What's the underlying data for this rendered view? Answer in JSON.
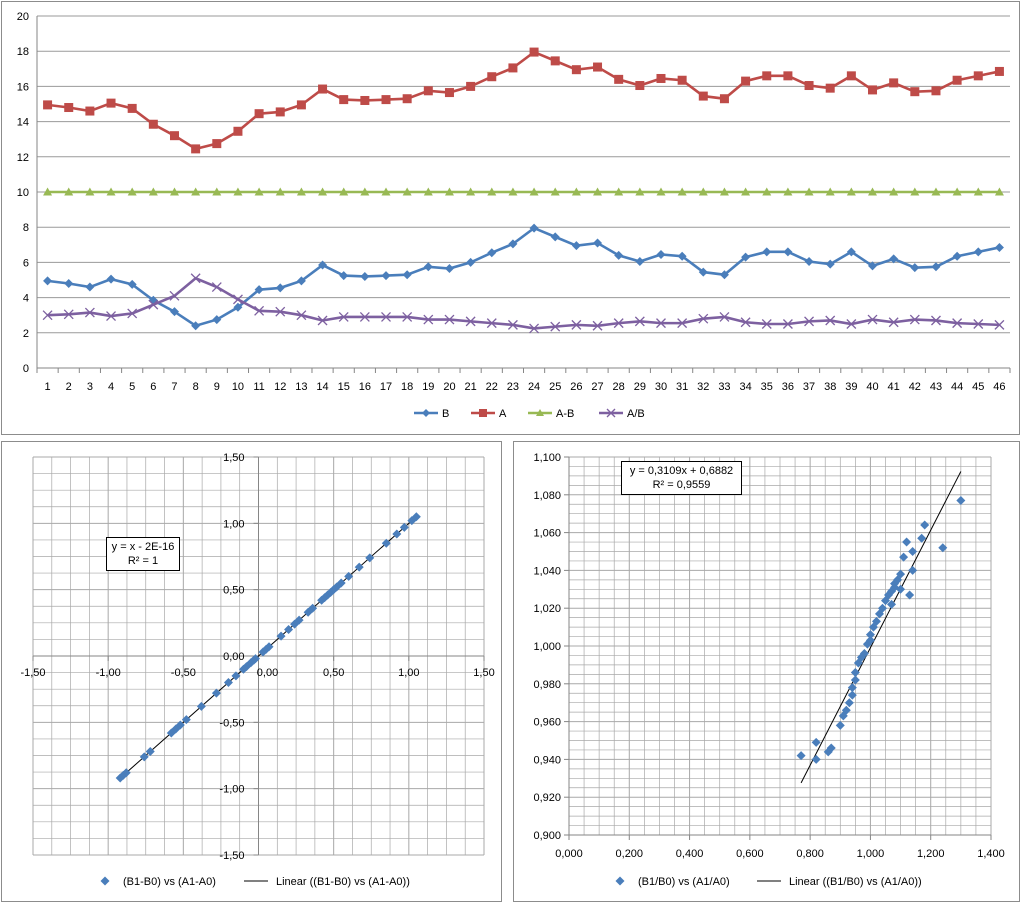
{
  "chart_data": [
    {
      "type": "line",
      "categories": [
        "1",
        "2",
        "3",
        "4",
        "5",
        "6",
        "7",
        "8",
        "9",
        "10",
        "11",
        "12",
        "13",
        "14",
        "15",
        "16",
        "17",
        "18",
        "19",
        "20",
        "21",
        "22",
        "23",
        "24",
        "25",
        "26",
        "27",
        "28",
        "29",
        "30",
        "31",
        "32",
        "33",
        "34",
        "35",
        "36",
        "37",
        "38",
        "39",
        "40",
        "41",
        "42",
        "43",
        "44",
        "45",
        "46"
      ],
      "ylim": [
        0,
        20
      ],
      "yticks": [
        "0",
        "2",
        "4",
        "6",
        "8",
        "10",
        "12",
        "14",
        "16",
        "18",
        "20"
      ],
      "grid": true,
      "legend": "bottom",
      "series": [
        {
          "name": "B",
          "color": "#4a7ebb",
          "marker": "diamond",
          "values": [
            4.95,
            4.8,
            4.6,
            5.05,
            4.75,
            3.85,
            3.2,
            2.4,
            2.75,
            3.45,
            4.45,
            4.55,
            4.95,
            5.85,
            5.25,
            5.2,
            5.25,
            5.3,
            5.75,
            5.65,
            6.0,
            6.55,
            7.05,
            7.95,
            7.45,
            6.95,
            7.1,
            6.4,
            6.05,
            6.45,
            6.35,
            5.45,
            5.3,
            6.3,
            6.6,
            6.6,
            6.05,
            5.9,
            6.6,
            5.8,
            6.2,
            5.7,
            5.75,
            6.35,
            6.6,
            6.85
          ]
        },
        {
          "name": "A",
          "color": "#be4b48",
          "marker": "square",
          "values": [
            14.95,
            14.8,
            14.6,
            15.05,
            14.75,
            13.85,
            13.2,
            12.45,
            12.75,
            13.45,
            14.45,
            14.55,
            14.95,
            15.85,
            15.25,
            15.2,
            15.25,
            15.3,
            15.75,
            15.65,
            16.0,
            16.55,
            17.05,
            17.95,
            17.45,
            16.95,
            17.1,
            16.4,
            16.05,
            16.45,
            16.35,
            15.45,
            15.3,
            16.3,
            16.6,
            16.6,
            16.05,
            15.9,
            16.6,
            15.8,
            16.2,
            15.7,
            15.75,
            16.35,
            16.6,
            16.85
          ]
        },
        {
          "name": "A-B",
          "color": "#98b954",
          "marker": "triangle",
          "values": [
            10,
            10,
            10,
            10,
            10,
            10,
            10,
            10,
            10,
            10,
            10,
            10,
            10,
            10,
            10,
            10,
            10,
            10,
            10,
            10,
            10,
            10,
            10,
            10,
            10,
            10,
            10,
            10,
            10,
            10,
            10,
            10,
            10,
            10,
            10,
            10,
            10,
            10,
            10,
            10,
            10,
            10,
            10,
            10,
            10,
            10
          ]
        },
        {
          "name": "A/B",
          "color": "#7d60a0",
          "marker": "x",
          "values": [
            3.0,
            3.05,
            3.15,
            2.95,
            3.1,
            3.6,
            4.1,
            5.1,
            4.6,
            3.9,
            3.25,
            3.2,
            3.0,
            2.7,
            2.9,
            2.9,
            2.9,
            2.9,
            2.75,
            2.75,
            2.65,
            2.55,
            2.45,
            2.25,
            2.35,
            2.45,
            2.4,
            2.55,
            2.65,
            2.55,
            2.55,
            2.8,
            2.9,
            2.6,
            2.5,
            2.5,
            2.65,
            2.7,
            2.5,
            2.75,
            2.6,
            2.75,
            2.7,
            2.55,
            2.5,
            2.45
          ]
        }
      ]
    },
    {
      "type": "scatter",
      "xlim": [
        -1.5,
        1.5
      ],
      "ylim": [
        -1.5,
        1.5
      ],
      "xticks": [
        "-1,50",
        "-1,00",
        "-0,50",
        "0,00",
        "0,50",
        "1,00",
        "1,50"
      ],
      "yticks": [
        "-1,50",
        "-1,00",
        "-0,50",
        "0,00",
        "0,50",
        "1,00",
        "1,50"
      ],
      "grid": true,
      "legend": "bottom",
      "equation": "y = x - 2E-16",
      "r2": "R² = 1",
      "trendline": {
        "slope": 1,
        "intercept": 0,
        "x_from": -0.92,
        "x_to": 1.05
      },
      "series": [
        {
          "name": "(B1-B0) vs (A1-A0)",
          "color": "#4a7ebb",
          "marker": "diamond",
          "x": [
            -0.92,
            -0.9,
            -0.88,
            -0.76,
            -0.72,
            -0.58,
            -0.55,
            -0.52,
            -0.48,
            -0.38,
            -0.28,
            -0.2,
            -0.15,
            -0.1,
            -0.08,
            -0.05,
            -0.03,
            -0.02,
            0.03,
            0.05,
            0.07,
            0.15,
            0.2,
            0.24,
            0.27,
            0.33,
            0.36,
            0.42,
            0.44,
            0.46,
            0.48,
            0.5,
            0.52,
            0.55,
            0.6,
            0.67,
            0.74,
            0.85,
            0.92,
            0.97,
            1.02,
            1.05
          ],
          "y": [
            -0.92,
            -0.9,
            -0.88,
            -0.76,
            -0.72,
            -0.58,
            -0.55,
            -0.52,
            -0.48,
            -0.38,
            -0.28,
            -0.2,
            -0.15,
            -0.1,
            -0.08,
            -0.05,
            -0.03,
            -0.02,
            0.03,
            0.05,
            0.07,
            0.15,
            0.2,
            0.24,
            0.27,
            0.33,
            0.36,
            0.42,
            0.44,
            0.46,
            0.48,
            0.5,
            0.52,
            0.55,
            0.6,
            0.67,
            0.74,
            0.85,
            0.92,
            0.97,
            1.02,
            1.05
          ]
        }
      ],
      "trend_legend": "Linear ((B1-B0) vs (A1-A0))"
    },
    {
      "type": "scatter",
      "xlim": [
        0,
        1.4
      ],
      "ylim": [
        0.9,
        1.1
      ],
      "xticks": [
        "0,000",
        "0,200",
        "0,400",
        "0,600",
        "0,800",
        "1,000",
        "1,200",
        "1,400"
      ],
      "yticks": [
        "0,900",
        "0,920",
        "0,940",
        "0,960",
        "0,980",
        "1,000",
        "1,020",
        "1,040",
        "1,060",
        "1,080",
        "1,100"
      ],
      "grid": true,
      "legend": "bottom",
      "equation": "y = 0,3109x + 0,6882",
      "r2": "R² = 0,9559",
      "trendline": {
        "slope": 0.3109,
        "intercept": 0.6882,
        "x_from": 0.77,
        "x_to": 1.3
      },
      "series": [
        {
          "name": "(B1/B0) vs (A1/A0)",
          "color": "#4a7ebb",
          "marker": "diamond",
          "x": [
            0.77,
            0.82,
            0.82,
            0.86,
            0.87,
            0.9,
            0.91,
            0.92,
            0.93,
            0.94,
            0.94,
            0.95,
            0.95,
            0.96,
            0.97,
            0.98,
            0.99,
            1.0,
            1.0,
            1.01,
            1.02,
            1.03,
            1.04,
            1.05,
            1.06,
            1.07,
            1.07,
            1.08,
            1.08,
            1.09,
            1.1,
            1.1,
            1.11,
            1.12,
            1.13,
            1.14,
            1.14,
            1.17,
            1.18,
            1.24,
            1.3
          ],
          "y": [
            0.942,
            0.949,
            0.94,
            0.944,
            0.946,
            0.958,
            0.963,
            0.966,
            0.97,
            0.974,
            0.978,
            0.982,
            0.986,
            0.991,
            0.994,
            0.996,
            1.001,
            1.003,
            1.006,
            1.01,
            1.013,
            1.017,
            1.02,
            1.024,
            1.027,
            1.022,
            1.029,
            1.031,
            1.033,
            1.035,
            1.03,
            1.038,
            1.047,
            1.055,
            1.027,
            1.04,
            1.05,
            1.057,
            1.064,
            1.052,
            1.077
          ]
        }
      ],
      "trend_legend": "Linear ((B1/B0) vs (A1/A0))"
    }
  ]
}
